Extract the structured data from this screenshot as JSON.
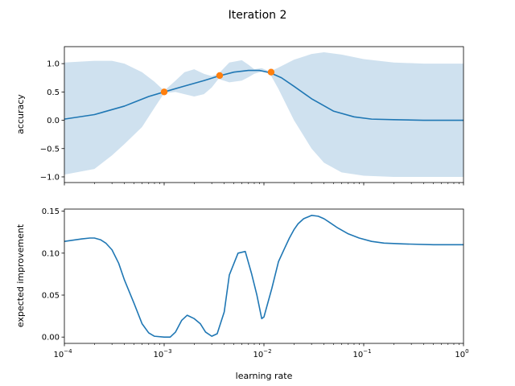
{
  "title": "Iteration 2",
  "colors": {
    "line": "#1f77b4",
    "band": "#cfe1ef",
    "points": "#ff7f0e"
  },
  "chart_data": [
    {
      "type": "line",
      "ylabel": "accuracy",
      "xlabel": "",
      "xscale": "log",
      "xlim": [
        0.0001,
        1
      ],
      "ylim": [
        -1.1,
        1.3
      ],
      "yticks": [
        -1.0,
        -0.5,
        0.0,
        0.5,
        1.0
      ],
      "ytick_labels": [
        "−1.0",
        "−0.5",
        "0.0",
        "0.5",
        "1.0"
      ],
      "show_x_tick_labels": false,
      "series": [
        {
          "kind": "mean",
          "x": [
            0.0001,
            0.0002,
            0.0004,
            0.0007,
            0.001,
            0.0015,
            0.0025,
            0.0035,
            0.005,
            0.007,
            0.009,
            0.0115,
            0.015,
            0.02,
            0.03,
            0.05,
            0.08,
            0.12,
            0.2,
            0.4,
            1
          ],
          "y": [
            0.02,
            0.1,
            0.25,
            0.42,
            0.5,
            0.59,
            0.7,
            0.78,
            0.85,
            0.88,
            0.88,
            0.84,
            0.75,
            0.6,
            0.38,
            0.16,
            0.06,
            0.02,
            0.01,
            0.0,
            0.0
          ]
        },
        {
          "kind": "band",
          "x": [
            0.0001,
            0.0002,
            0.0003,
            0.0004,
            0.0006,
            0.0008,
            0.001,
            0.0013,
            0.0016,
            0.002,
            0.0025,
            0.003,
            0.0035,
            0.0045,
            0.006,
            0.007,
            0.008,
            0.0095,
            0.0115,
            0.014,
            0.02,
            0.03,
            0.04,
            0.06,
            0.1,
            0.2,
            0.4,
            1
          ],
          "upper": [
            1.02,
            1.05,
            1.05,
            1.0,
            0.85,
            0.68,
            0.52,
            0.7,
            0.85,
            0.9,
            0.82,
            0.78,
            0.82,
            1.02,
            1.06,
            0.98,
            0.9,
            0.92,
            0.86,
            0.93,
            1.07,
            1.17,
            1.2,
            1.16,
            1.08,
            1.02,
            1.0,
            1.0
          ],
          "lower": [
            -0.96,
            -0.86,
            -0.62,
            -0.42,
            -0.12,
            0.22,
            0.48,
            0.5,
            0.46,
            0.42,
            0.46,
            0.58,
            0.73,
            0.67,
            0.7,
            0.76,
            0.82,
            0.86,
            0.82,
            0.55,
            0.0,
            -0.5,
            -0.75,
            -0.92,
            -0.98,
            -1.0,
            -1.0,
            -1.0
          ]
        },
        {
          "kind": "observations",
          "x": [
            0.001,
            0.0036,
            0.0118
          ],
          "y": [
            0.5,
            0.79,
            0.85
          ]
        }
      ]
    },
    {
      "type": "line",
      "xlabel": "learning rate",
      "ylabel": "expected improvement",
      "xscale": "log",
      "xlim": [
        0.0001,
        1
      ],
      "ylim": [
        -0.0075,
        0.1525
      ],
      "yticks": [
        0.0,
        0.05,
        0.1,
        0.15
      ],
      "ytick_labels": [
        "0.00",
        "0.05",
        "0.10",
        "0.15"
      ],
      "xticks": [
        0.0001,
        0.001,
        0.01,
        0.1,
        1
      ],
      "xtick_labels": [
        {
          "base": "10",
          "exp": "−4"
        },
        {
          "base": "10",
          "exp": "−3"
        },
        {
          "base": "10",
          "exp": "−2"
        },
        {
          "base": "10",
          "exp": "−1"
        },
        {
          "base": "10",
          "exp": "0"
        }
      ],
      "series": [
        {
          "x": [
            0.0001,
            0.00015,
            0.00018,
            0.0002,
            0.00023,
            0.00026,
            0.0003,
            0.00035,
            0.0004,
            0.0005,
            0.0006,
            0.0007,
            0.0008,
            0.001,
            0.00115,
            0.0013,
            0.0015,
            0.0017,
            0.002,
            0.0023,
            0.0026,
            0.003,
            0.0034,
            0.004,
            0.0045,
            0.0055,
            0.0065,
            0.0075,
            0.0085,
            0.0095,
            0.01,
            0.012,
            0.014,
            0.016,
            0.018,
            0.02,
            0.022,
            0.025,
            0.03,
            0.035,
            0.04,
            0.045,
            0.055,
            0.07,
            0.09,
            0.12,
            0.16,
            0.25,
            0.5,
            1
          ],
          "y": [
            0.114,
            0.117,
            0.118,
            0.118,
            0.116,
            0.112,
            0.104,
            0.088,
            0.068,
            0.04,
            0.016,
            0.005,
            0.001,
            0.0,
            0.0,
            0.006,
            0.02,
            0.026,
            0.022,
            0.016,
            0.006,
            0.001,
            0.004,
            0.03,
            0.074,
            0.1,
            0.102,
            0.076,
            0.05,
            0.022,
            0.024,
            0.058,
            0.09,
            0.105,
            0.118,
            0.128,
            0.135,
            0.141,
            0.145,
            0.144,
            0.141,
            0.137,
            0.13,
            0.123,
            0.118,
            0.114,
            0.112,
            0.111,
            0.11,
            0.11
          ]
        }
      ]
    }
  ]
}
